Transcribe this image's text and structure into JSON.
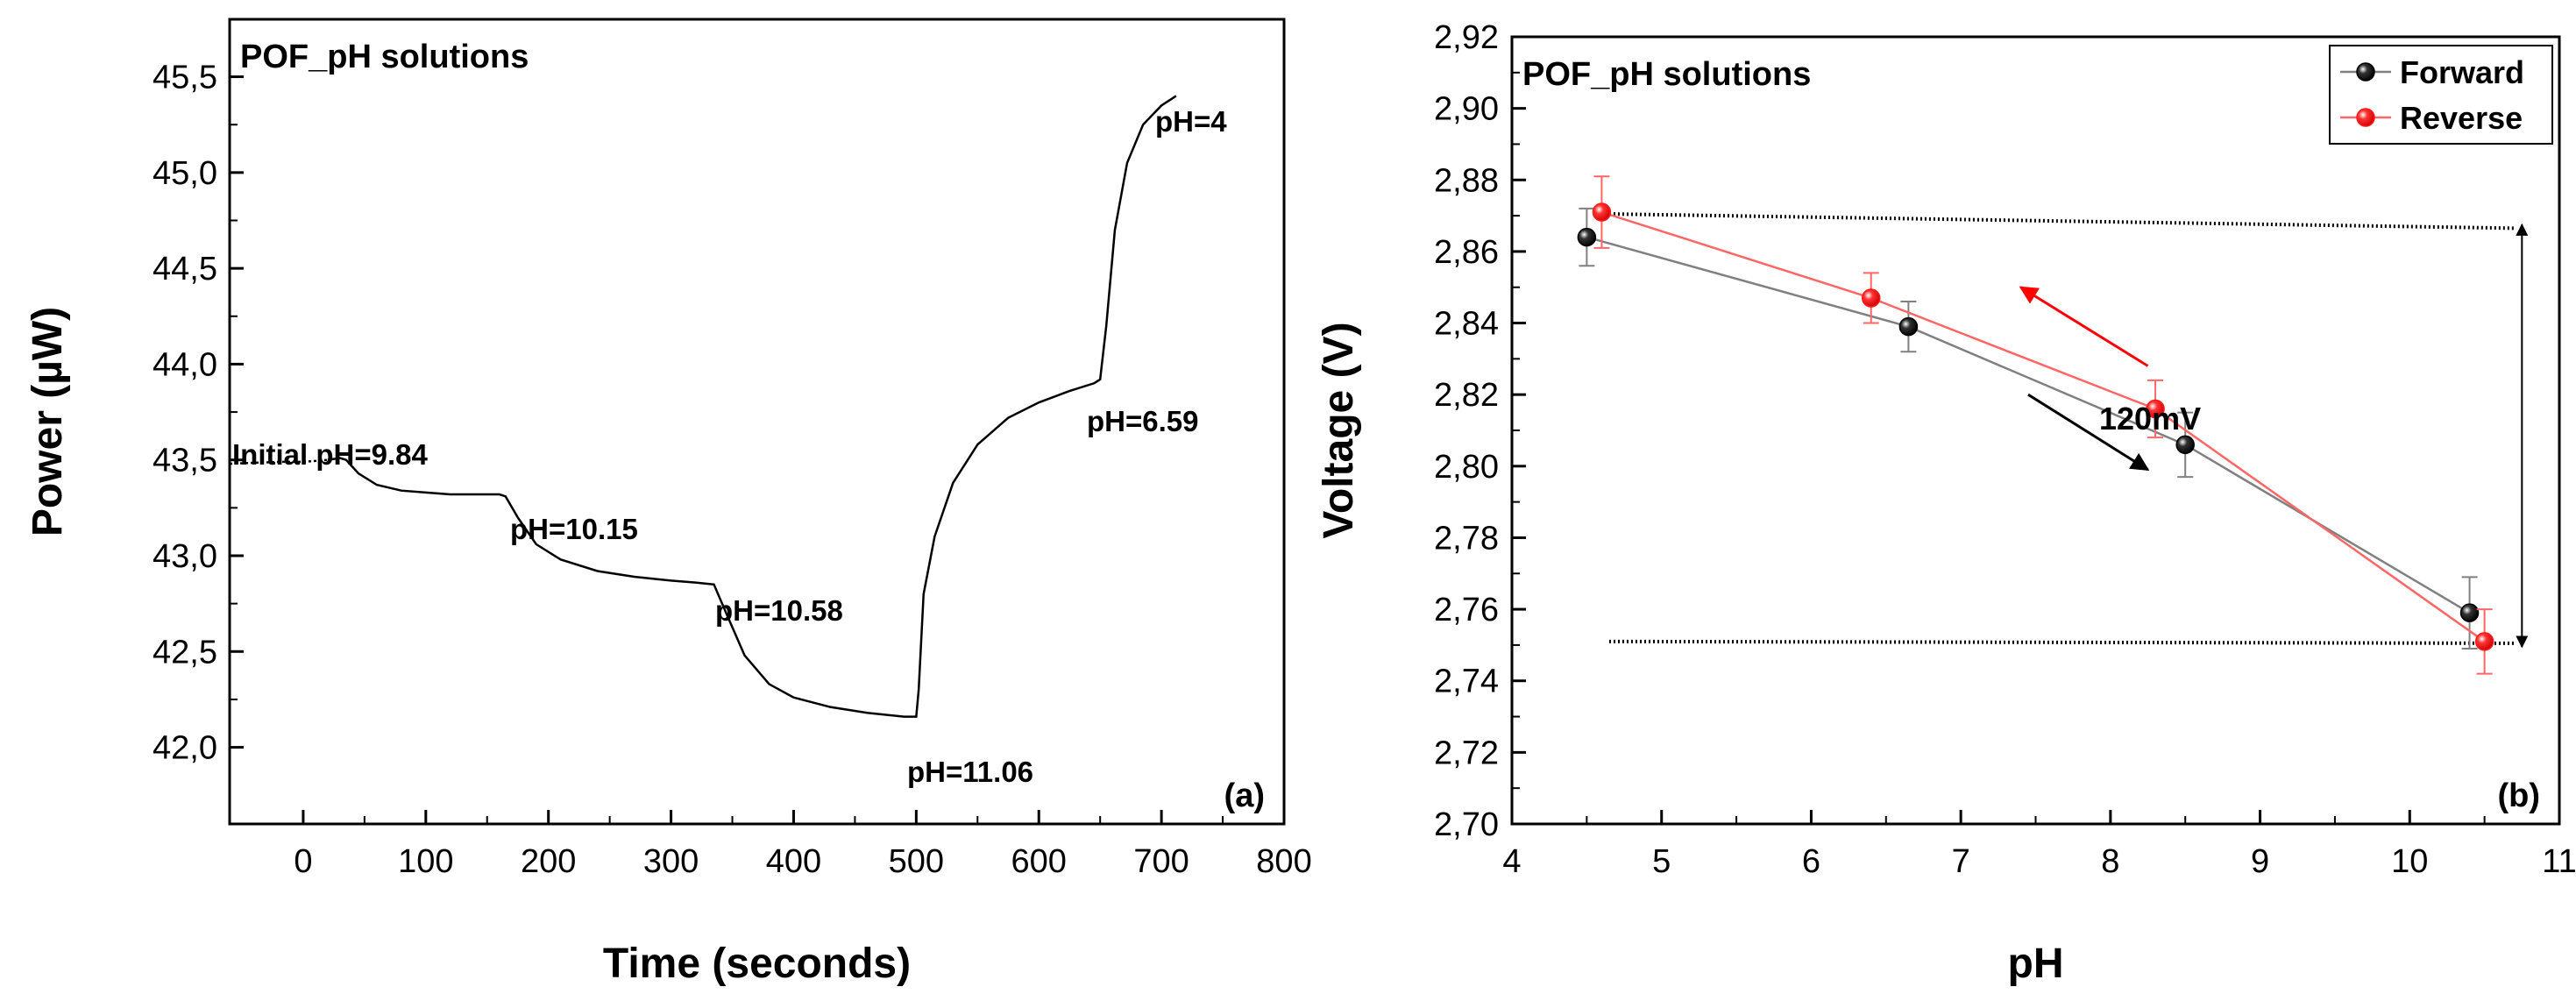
{
  "chart_data": [
    {
      "id": "a",
      "type": "line",
      "title": "POF_pH solutions",
      "panel_label": "(a)",
      "xlabel": "Time (seconds)",
      "ylabel": "Power (µW)",
      "xlim": [
        -60,
        800
      ],
      "ylim": [
        41.6,
        45.8
      ],
      "xticks": [
        0,
        100,
        200,
        300,
        400,
        500,
        600,
        700,
        800
      ],
      "xtick_labels": [
        "0",
        "100",
        "200",
        "300",
        "400",
        "500",
        "600",
        "700",
        "800"
      ],
      "yticks": [
        42.0,
        42.5,
        43.0,
        43.5,
        44.0,
        44.5,
        45.0,
        45.5
      ],
      "ytick_labels": [
        "42,0",
        "42,5",
        "43,0",
        "43,5",
        "44,0",
        "44,5",
        "45,0",
        "45,5"
      ],
      "series": [
        {
          "name": "Power",
          "x": [
            -60,
            -20,
            0,
            20,
            30,
            35,
            45,
            60,
            80,
            100,
            120,
            140,
            160,
            165,
            175,
            190,
            210,
            240,
            270,
            300,
            320,
            335,
            345,
            360,
            380,
            400,
            430,
            460,
            490,
            500,
            502,
            506,
            515,
            530,
            550,
            575,
            600,
            625,
            645,
            650,
            655,
            662,
            672,
            685,
            700,
            712
          ],
          "y": [
            43.48,
            43.49,
            43.49,
            43.5,
            43.51,
            43.5,
            43.43,
            43.37,
            43.34,
            43.33,
            43.32,
            43.32,
            43.32,
            43.31,
            43.2,
            43.06,
            42.98,
            42.92,
            42.89,
            42.87,
            42.86,
            42.85,
            42.7,
            42.48,
            42.33,
            42.26,
            42.21,
            42.18,
            42.16,
            42.16,
            42.3,
            42.8,
            43.1,
            43.38,
            43.58,
            43.72,
            43.8,
            43.86,
            43.9,
            43.92,
            44.2,
            44.7,
            45.05,
            45.25,
            45.35,
            45.4
          ]
        }
      ],
      "annotations": [
        {
          "text": "Initial pH=9.84",
          "x": 30,
          "y": 43.62
        },
        {
          "text": "pH=10.15",
          "x": 205,
          "y": 43.2
        },
        {
          "text": "pH=10.58",
          "x": 405,
          "y": 42.8
        },
        {
          "text": "pH=11.06",
          "x": 565,
          "y": 41.98
        },
        {
          "text": "pH=6.59",
          "x": 690,
          "y": 43.79
        },
        {
          "text": "pH=4",
          "x": 730,
          "y": 45.28
        }
      ]
    },
    {
      "id": "b",
      "type": "line",
      "title": "POF_pH solutions",
      "panel_label": "(b)",
      "xlabel": "pH",
      "ylabel": "Voltage (V)",
      "xlim": [
        4,
        11
      ],
      "ylim": [
        2.7,
        2.92
      ],
      "xticks": [
        4,
        5,
        6,
        7,
        8,
        9,
        10,
        11
      ],
      "xtick_labels": [
        "4",
        "5",
        "6",
        "7",
        "8",
        "9",
        "10",
        "11"
      ],
      "yticks": [
        2.7,
        2.72,
        2.74,
        2.76,
        2.78,
        2.8,
        2.82,
        2.84,
        2.86,
        2.88,
        2.9,
        2.92
      ],
      "ytick_labels": [
        "2,70",
        "2,72",
        "2,74",
        "2,76",
        "2,78",
        "2,80",
        "2,82",
        "2,84",
        "2,86",
        "2,88",
        "2,90",
        "2,92"
      ],
      "legend_position": "top-right",
      "series": [
        {
          "name": "Forward",
          "color": "#000000",
          "line_color": "#808080",
          "x": [
            4.5,
            6.65,
            8.5,
            10.4
          ],
          "y": [
            2.864,
            2.839,
            2.806,
            2.759
          ],
          "err": [
            0.008,
            0.007,
            0.009,
            0.01
          ]
        },
        {
          "name": "Reverse",
          "color": "#ff1a1a",
          "line_color": "#ff6666",
          "x": [
            4.6,
            6.4,
            8.3,
            10.5
          ],
          "y": [
            2.871,
            2.847,
            2.816,
            2.751
          ],
          "err": [
            0.01,
            0.007,
            0.008,
            0.009
          ]
        }
      ],
      "reference_lines": [
        {
          "x": [
            4.65,
            10.7
          ],
          "y": [
            2.8705,
            2.8665
          ]
        },
        {
          "x": [
            4.65,
            10.7
          ],
          "y": [
            2.751,
            2.7505
          ]
        }
      ],
      "annotations": [
        {
          "text": "120mV",
          "x": 10.1,
          "y": 2.8
        }
      ],
      "arrows": [
        {
          "color": "#ff0000",
          "from": [
            8.25,
            2.828
          ],
          "to": [
            7.4,
            2.85
          ]
        },
        {
          "color": "#000000",
          "from": [
            7.45,
            2.82
          ],
          "to": [
            8.25,
            2.799
          ]
        },
        {
          "color": "#000000",
          "double": true,
          "from": [
            10.75,
            2.7495
          ],
          "to": [
            10.75,
            2.8675
          ]
        }
      ]
    }
  ]
}
